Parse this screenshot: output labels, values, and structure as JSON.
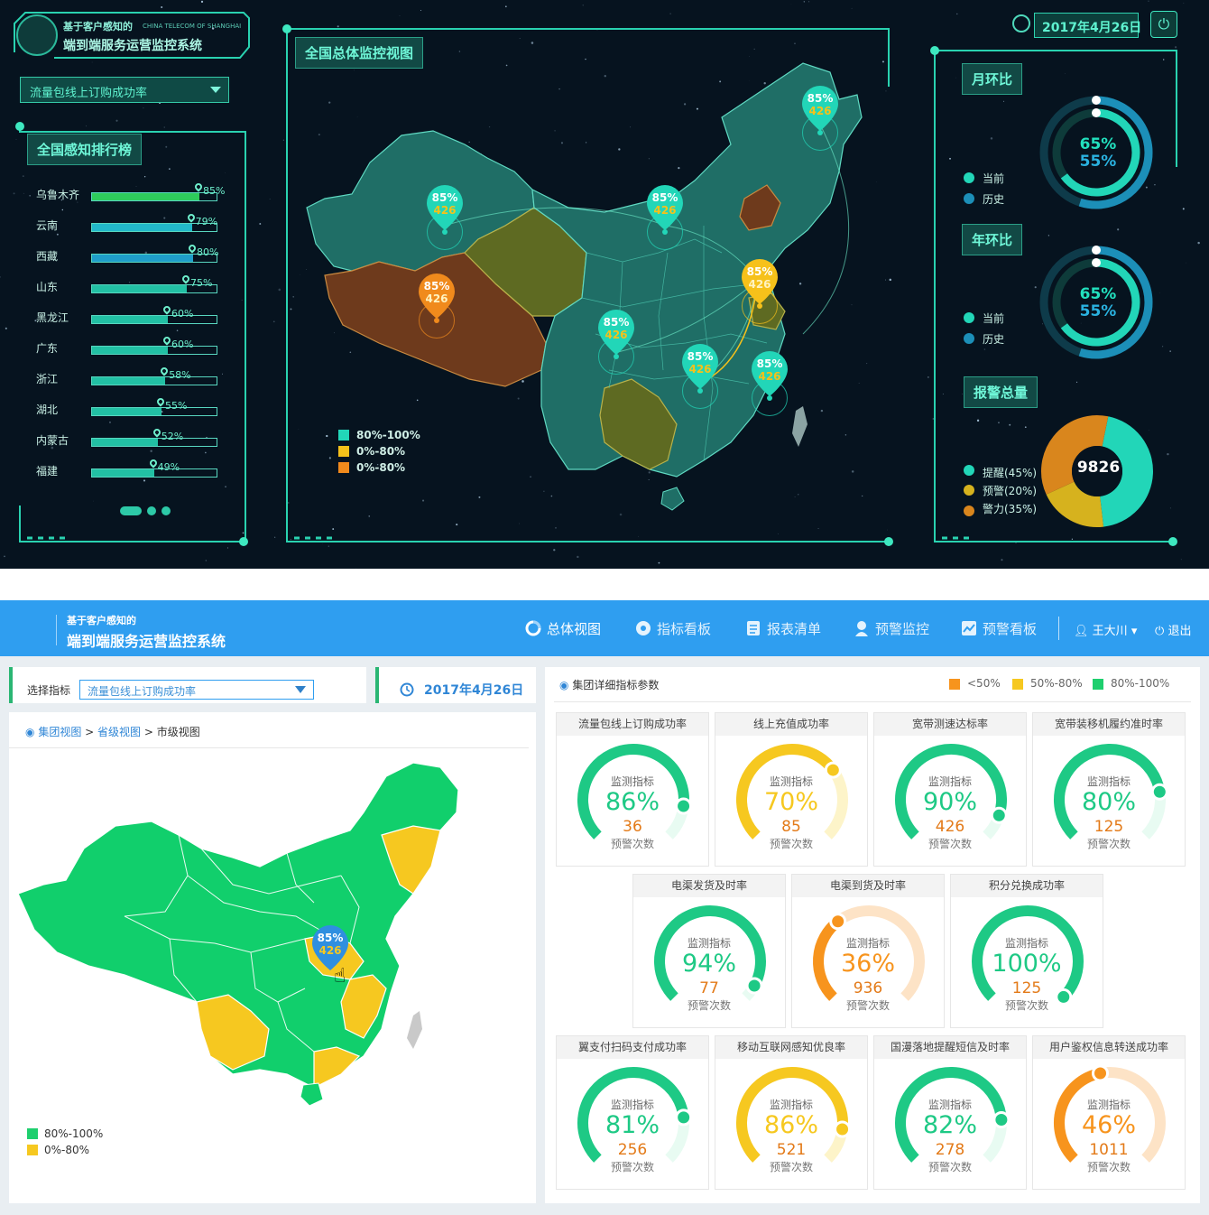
{
  "dark_dashboard": {
    "logo": {
      "line1": "基于客户感知的",
      "english": "CHINA TELECOM OF SHANGHAI",
      "line2": "端到端服务运营监控系统"
    },
    "indicator_select": {
      "value": "流量包线上订购成功率"
    },
    "ranking": {
      "title": "全国感知排行榜",
      "items": [
        {
          "name": "乌鲁木齐",
          "pct": "85%",
          "value": 0.85,
          "color": "#2ecc5b"
        },
        {
          "name": "云南",
          "pct": "79%",
          "value": 0.79,
          "color": "#22b8c9"
        },
        {
          "name": "西藏",
          "pct": "80%",
          "value": 0.8,
          "color": "#1f9ec9"
        },
        {
          "name": "山东",
          "pct": "75%",
          "value": 0.75,
          "color": "#22c0a4"
        },
        {
          "name": "黑龙江",
          "pct": "60%",
          "value": 0.6,
          "color": "#22c0a4"
        },
        {
          "name": "广东",
          "pct": "60%",
          "value": 0.6,
          "color": "#22c0a4"
        },
        {
          "name": "浙江",
          "pct": "58%",
          "value": 0.58,
          "color": "#22c0a4"
        },
        {
          "name": "湖北",
          "pct": "55%",
          "value": 0.55,
          "color": "#22c0a4"
        },
        {
          "name": "内蒙古",
          "pct": "52%",
          "value": 0.52,
          "color": "#22c0a4"
        },
        {
          "name": "福建",
          "pct": "49%",
          "value": 0.49,
          "color": "#22c0a4"
        }
      ]
    },
    "map_panel": {
      "title": "全国总体监控视图",
      "legend": [
        {
          "label": "80%-100%",
          "color": "#22d6b8"
        },
        {
          "label": "0%-80%",
          "color": "#f6c11a"
        },
        {
          "label": "0%-80%",
          "color": "#f08a1c"
        }
      ],
      "pins": [
        {
          "pct": "85%",
          "count": "426",
          "color": "#22d6b8"
        },
        {
          "pct": "85%",
          "count": "426",
          "color": "#22d6b8"
        },
        {
          "pct": "85%",
          "count": "426",
          "color": "#22d6b8"
        },
        {
          "pct": "85%",
          "count": "426",
          "color": "#f08a1c"
        },
        {
          "pct": "85%",
          "count": "426",
          "color": "#f6c11a"
        },
        {
          "pct": "85%",
          "count": "426",
          "color": "#22d6b8"
        },
        {
          "pct": "85%",
          "count": "426",
          "color": "#22d6b8"
        },
        {
          "pct": "85%",
          "count": "426",
          "color": "#22d6b8"
        }
      ]
    },
    "date": "2017年4月26日",
    "mom": {
      "title": "月环比",
      "current_label": "当前",
      "history_label": "历史",
      "current": "65%",
      "history": "55%",
      "current_value": 0.65,
      "history_value": 0.55
    },
    "yoy": {
      "title": "年环比",
      "current_label": "当前",
      "history_label": "历史",
      "current": "65%",
      "history": "55%",
      "current_value": 0.65,
      "history_value": 0.55
    },
    "alarms": {
      "title": "报警总量",
      "total": "9826",
      "items": [
        {
          "label": "提醒(45%)",
          "value": 45,
          "color": "#22d6b8"
        },
        {
          "label": "预警(20%)",
          "value": 20,
          "color": "#d6b21e"
        },
        {
          "label": "警力(35%)",
          "value": 35,
          "color": "#d9861d"
        }
      ]
    }
  },
  "light_dashboard": {
    "header": {
      "line1": "基于客户感知的",
      "line2": "端到端服务运营监控系统"
    },
    "nav": [
      {
        "label": "总体视图",
        "icon": "donut-icon"
      },
      {
        "label": "指标看板",
        "icon": "dial-icon"
      },
      {
        "label": "报表清单",
        "icon": "report-icon"
      },
      {
        "label": "预警监控",
        "icon": "user-alert-icon"
      },
      {
        "label": "预警看板",
        "icon": "trend-board-icon"
      }
    ],
    "user": "王大川",
    "logout": "退出",
    "select_label": "选择指标",
    "select_value": "流量包线上订购成功率",
    "date": "2017年4月26日",
    "breadcrumb": {
      "group": "集团视图",
      "province": "省级视图",
      "city": "市级视图"
    },
    "map_pin": {
      "pct": "85%",
      "count": "426"
    },
    "map_legend": [
      {
        "label": "80%-100%",
        "color": "#1ecf6e"
      },
      {
        "label": "0%-80%",
        "color": "#f6c820"
      }
    ],
    "detail_title": "集团详细指标参数",
    "detail_legend": [
      {
        "label": "<50%",
        "color": "#f7941d"
      },
      {
        "label": "50%-80%",
        "color": "#f6c820"
      },
      {
        "label": "80%-100%",
        "color": "#1ecf6e"
      }
    ],
    "monitor_label": "监测指标",
    "warn_label": "预警次数",
    "gauges": [
      {
        "title": "流量包线上订购成功率",
        "pct": "86%",
        "value": 0.86,
        "count": "36",
        "color": "#1ec985",
        "track": "#e8fbf2"
      },
      {
        "title": "线上充值成功率",
        "pct": "70%",
        "value": 0.7,
        "count": "85",
        "color": "#f6c820",
        "track": "#fdf4c9"
      },
      {
        "title": "宽带测速达标率",
        "pct": "90%",
        "value": 0.9,
        "count": "426",
        "color": "#1ec985",
        "track": "#e8fbf2"
      },
      {
        "title": "宽带装移机履约准时率",
        "pct": "80%",
        "value": 0.8,
        "count": "125",
        "color": "#1ec985",
        "track": "#e8fbf2"
      },
      {
        "title": "电渠发货及时率",
        "pct": "94%",
        "value": 0.94,
        "count": "77",
        "color": "#1ec985",
        "track": "#e8fbf2"
      },
      {
        "title": "电渠到货及时率",
        "pct": "36%",
        "value": 0.36,
        "count": "936",
        "color": "#f7941d",
        "track": "#fde3c6"
      },
      {
        "title": "积分兑换成功率",
        "pct": "100%",
        "value": 1.0,
        "count": "125",
        "color": "#1ec985",
        "track": "#e8fbf2"
      },
      {
        "title": "翼支付扫码支付成功率",
        "pct": "81%",
        "value": 0.81,
        "count": "256",
        "color": "#1ec985",
        "track": "#e8fbf2"
      },
      {
        "title": "移动互联网感知优良率",
        "pct": "86%",
        "value": 0.86,
        "count": "521",
        "color": "#f6c820",
        "track": "#fdf4c9"
      },
      {
        "title": "国漫落地提醒短信及时率",
        "pct": "82%",
        "value": 0.82,
        "count": "278",
        "color": "#1ec985",
        "track": "#e8fbf2"
      },
      {
        "title": "用户鉴权信息转送成功率",
        "pct": "46%",
        "value": 0.46,
        "count": "1011",
        "color": "#f7941d",
        "track": "#fde3c6"
      }
    ]
  }
}
